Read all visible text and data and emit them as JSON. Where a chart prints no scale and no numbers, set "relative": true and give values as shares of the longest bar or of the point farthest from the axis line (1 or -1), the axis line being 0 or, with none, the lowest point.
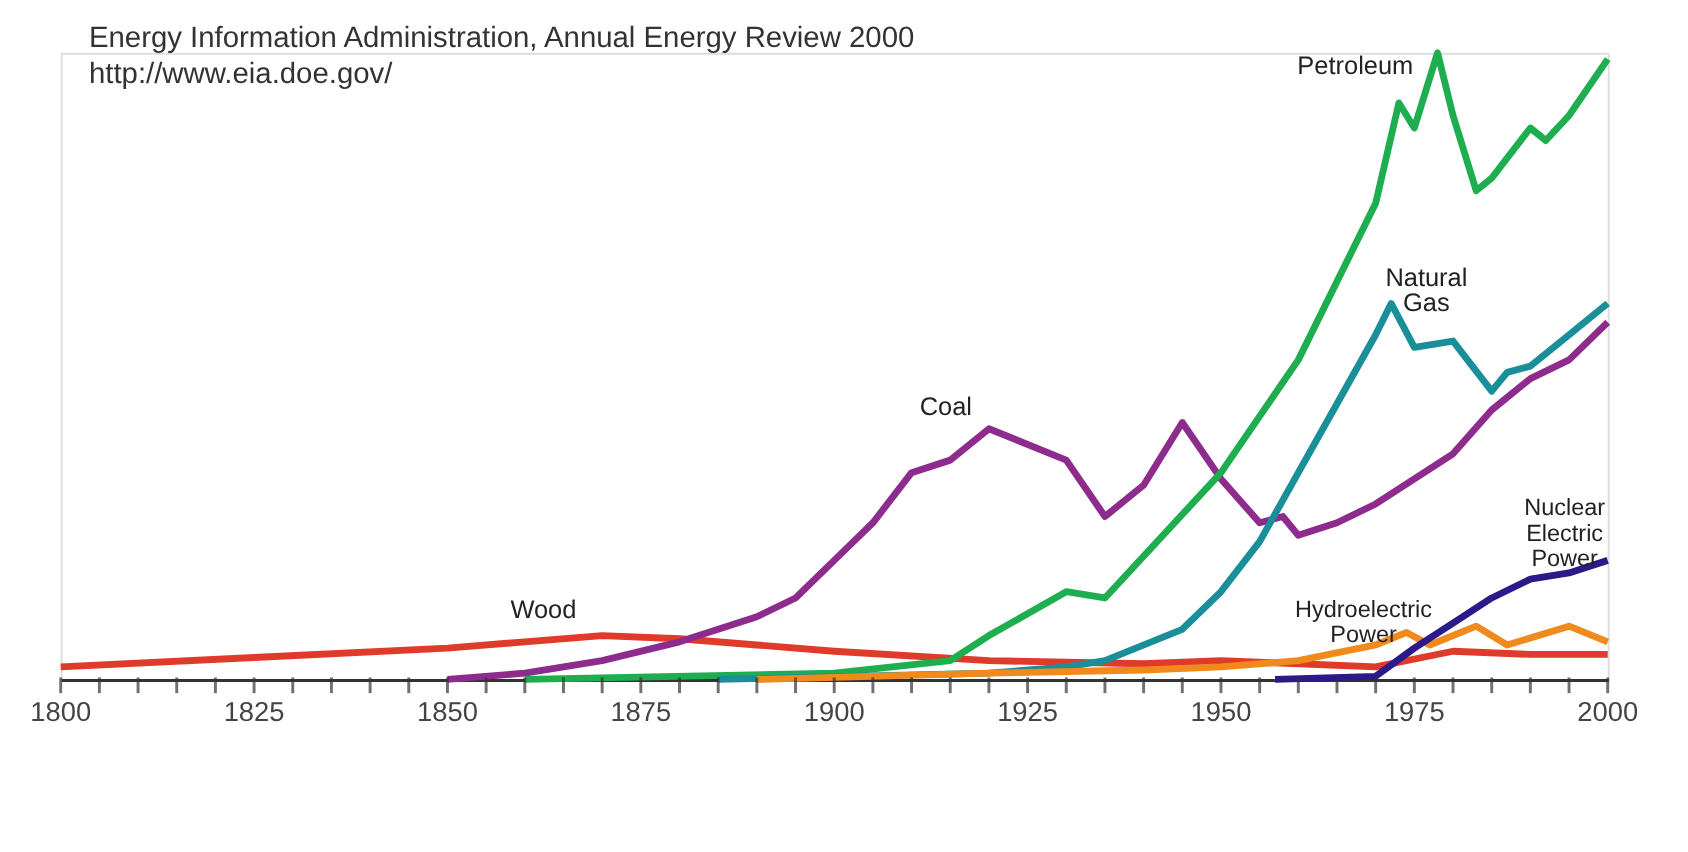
{
  "chart_data": {
    "type": "line",
    "relative": true,
    "title": "Energy Information Administration, Annual Energy Review 2000",
    "subtitle": "http://www.eia.doe.gov/",
    "xlim": [
      1800,
      2000
    ],
    "xticks": [
      1800,
      {
        "value": 1805,
        "label": null
      },
      {
        "value": 1810,
        "label": null
      },
      {
        "value": 1815,
        "label": null
      },
      {
        "value": 1820,
        "label": null
      },
      1825,
      {
        "value": 1830,
        "label": null
      },
      {
        "value": 1835,
        "label": null
      },
      {
        "value": 1840,
        "label": null
      },
      {
        "value": 1845,
        "label": null
      },
      1850,
      {
        "value": 1855,
        "label": null
      },
      {
        "value": 1860,
        "label": null
      },
      {
        "value": 1865,
        "label": null
      },
      {
        "value": 1870,
        "label": null
      },
      1875,
      {
        "value": 1880,
        "label": null
      },
      {
        "value": 1885,
        "label": null
      },
      {
        "value": 1890,
        "label": null
      },
      {
        "value": 1895,
        "label": null
      },
      1900,
      {
        "value": 1905,
        "label": null
      },
      {
        "value": 1910,
        "label": null
      },
      {
        "value": 1915,
        "label": null
      },
      {
        "value": 1920,
        "label": null
      },
      1925,
      {
        "value": 1930,
        "label": null
      },
      {
        "value": 1935,
        "label": null
      },
      {
        "value": 1940,
        "label": null
      },
      {
        "value": 1945,
        "label": null
      },
      1950,
      {
        "value": 1955,
        "label": null
      },
      {
        "value": 1960,
        "label": null
      },
      {
        "value": 1965,
        "label": null
      },
      {
        "value": 1970,
        "label": null
      },
      1975,
      {
        "value": 1980,
        "label": null
      },
      {
        "value": 1985,
        "label": null
      },
      {
        "value": 1990,
        "label": null
      },
      {
        "value": 1995,
        "label": null
      },
      2000
    ],
    "grid": false,
    "legend": false,
    "tick_labels": "x",
    "series": [
      {
        "name": "Wood",
        "color": "#e03a2a",
        "x": [
          1800,
          1825,
          1850,
          1860,
          1870,
          1880,
          1890,
          1900,
          1920,
          1940,
          1950,
          1960,
          1970,
          1980,
          1990,
          2000
        ],
        "values": [
          0.02,
          0.035,
          0.05,
          0.06,
          0.07,
          0.065,
          0.055,
          0.045,
          0.03,
          0.025,
          0.03,
          0.025,
          0.02,
          0.045,
          0.04,
          0.04
        ]
      },
      {
        "name": "Coal",
        "color": "#8e2c8e",
        "x": [
          1850,
          1860,
          1870,
          1880,
          1890,
          1895,
          1900,
          1905,
          1910,
          1915,
          1920,
          1930,
          1935,
          1940,
          1945,
          1950,
          1955,
          1958,
          1960,
          1965,
          1970,
          1975,
          1980,
          1985,
          1990,
          1995,
          2000
        ],
        "values": [
          0,
          0.01,
          0.03,
          0.06,
          0.1,
          0.13,
          0.19,
          0.25,
          0.33,
          0.35,
          0.4,
          0.35,
          0.26,
          0.31,
          0.41,
          0.32,
          0.25,
          0.26,
          0.23,
          0.25,
          0.28,
          0.32,
          0.36,
          0.43,
          0.48,
          0.51,
          0.57
        ]
      },
      {
        "name": "Petroleum",
        "color": "#1fae4f",
        "x": [
          1860,
          1900,
          1915,
          1920,
          1930,
          1935,
          1950,
          1960,
          1970,
          1973,
          1975,
          1978,
          1980,
          1983,
          1985,
          1990,
          1992,
          1995,
          2000
        ],
        "values": [
          0,
          0.01,
          0.03,
          0.07,
          0.14,
          0.13,
          0.33,
          0.51,
          0.76,
          0.92,
          0.88,
          1.0,
          0.9,
          0.78,
          0.8,
          0.88,
          0.86,
          0.9,
          0.99
        ]
      },
      {
        "name": "Natural\nGas",
        "color": "#1a8f9a",
        "x": [
          1885,
          1920,
          1930,
          1935,
          1945,
          1950,
          1955,
          1960,
          1965,
          1970,
          1972,
          1975,
          1980,
          1985,
          1987,
          1990,
          1995,
          2000
        ],
        "values": [
          0,
          0.01,
          0.02,
          0.03,
          0.08,
          0.14,
          0.22,
          0.33,
          0.44,
          0.55,
          0.6,
          0.53,
          0.54,
          0.46,
          0.49,
          0.5,
          0.55,
          0.6
        ]
      },
      {
        "name": "Hydroelectric\nPower",
        "color": "#f08a1c",
        "x": [
          1890,
          1920,
          1940,
          1950,
          1960,
          1970,
          1974,
          1977,
          1983,
          1987,
          1995,
          2000
        ],
        "values": [
          0,
          0.01,
          0.015,
          0.02,
          0.03,
          0.055,
          0.075,
          0.055,
          0.085,
          0.055,
          0.085,
          0.06
        ]
      },
      {
        "name": "Nuclear\nElectric\nPower",
        "color": "#2a1a8a",
        "x": [
          1957,
          1970,
          1975,
          1980,
          1985,
          1990,
          1995,
          2000
        ],
        "values": [
          0,
          0.005,
          0.05,
          0.09,
          0.13,
          0.16,
          0.17,
          0.19
        ]
      }
    ]
  }
}
